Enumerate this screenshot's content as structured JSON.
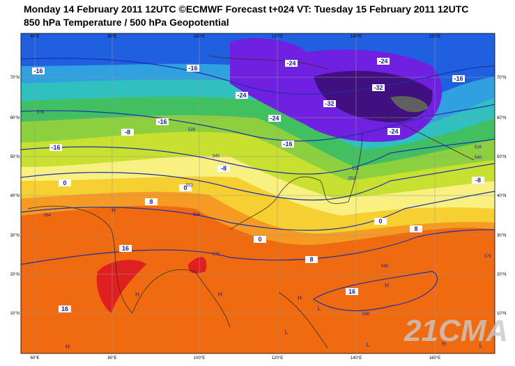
{
  "header": {
    "line1": "Monday 14 February 2011 12UTC ©ECMWF Forecast t+024 VT: Tuesday 15 February 2011 12UTC",
    "line2": "850 hPa Temperature / 500 hPa Geopotential"
  },
  "map": {
    "lon_labels": [
      "60°E",
      "80°E",
      "100°E",
      "120°E",
      "140°E",
      "160°E"
    ],
    "lat_labels": [
      "70°N",
      "60°N",
      "50°N",
      "40°N",
      "30°N",
      "20°N",
      "10°N"
    ],
    "temperature_labels": [
      "-16",
      "-16",
      "-24",
      "-24",
      "-16",
      "-24",
      "-32",
      "-32",
      "-24",
      "-16",
      "-24",
      "-16",
      "-8",
      "-16",
      "-8",
      "0",
      "0",
      "8",
      "0",
      "8",
      "0",
      "16",
      "8",
      "16",
      "16",
      "-8"
    ],
    "geopotential_labels": [
      "564",
      "576",
      "528",
      "540",
      "552",
      "564",
      "576",
      "588",
      "588",
      "552",
      "528",
      "540",
      "516",
      "576"
    ],
    "pressure_centres": [
      "H",
      "H",
      "H",
      "H",
      "H",
      "H",
      "H",
      "L",
      "L",
      "L",
      "L"
    ],
    "watermark": "21CMA"
  }
}
